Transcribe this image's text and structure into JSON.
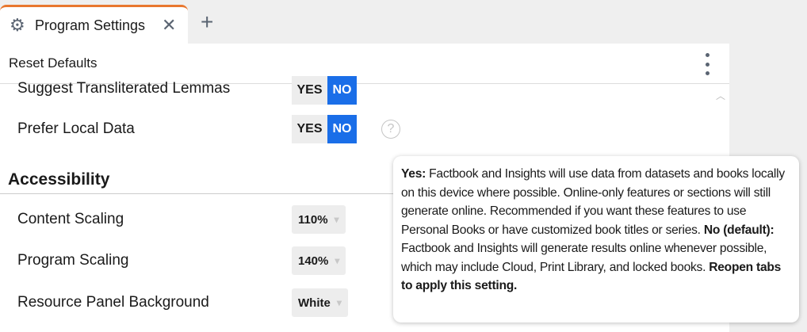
{
  "tab": {
    "title": "Program Settings",
    "icon": "gear-icon",
    "close": "✕",
    "new_tab": "+"
  },
  "toolbar": {
    "reset": "Reset Defaults"
  },
  "settings": [
    {
      "label": "Suggest Transliterated Lemmas",
      "yes": "YES",
      "no": "NO",
      "value": "NO"
    },
    {
      "label": "Prefer Local Data",
      "yes": "YES",
      "no": "NO",
      "value": "NO",
      "help": "?"
    }
  ],
  "accessibility": {
    "heading": "Accessibility",
    "items": [
      {
        "label": "Content Scaling",
        "value": "110%"
      },
      {
        "label": "Program Scaling",
        "value": "140%"
      },
      {
        "label": "Resource Panel Background",
        "value": "White"
      }
    ]
  },
  "tooltip": {
    "yes_label": "Yes:",
    "yes_text": " Factbook and Insights will use data from datasets and books locally on this device where possible. Online-only features or sections will still generate online. Recommended if you want these features to use Personal Books or have customized book titles or series. ",
    "no_label": "No (default):",
    "no_text": " Factbook and Insights will generate results online whenever possible, which may include Cloud, Print Library, and locked books. ",
    "footer": "Reopen tabs to apply this setting."
  },
  "colors": {
    "accent": "#1a6ee8",
    "tab_indicator": "#e8772e"
  }
}
